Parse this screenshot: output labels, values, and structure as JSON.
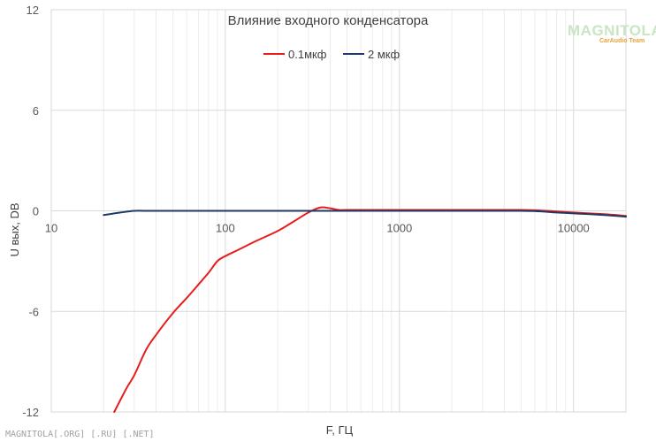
{
  "chart_data": {
    "type": "line",
    "title": "Влияние входного конденсатора",
    "xlabel": "F, ГЦ",
    "ylabel": "U вых, DB",
    "x_scale": "log",
    "xlim": [
      10,
      20000
    ],
    "ylim": [
      -12,
      12
    ],
    "x_ticks": [
      10,
      100,
      1000,
      10000
    ],
    "x_tick_labels": [
      "10",
      "100",
      "1000",
      "10000"
    ],
    "y_ticks": [
      -12,
      -6,
      0,
      6,
      12
    ],
    "y_tick_labels": [
      "-12",
      "-6",
      "0",
      "6",
      "12"
    ],
    "grid": true,
    "legend_position": "top-center",
    "series": [
      {
        "name": "0.1мкф",
        "color": "#e81c1c",
        "points": [
          [
            23,
            -12.0
          ],
          [
            27,
            -10.6
          ],
          [
            30,
            -9.8
          ],
          [
            35,
            -8.3
          ],
          [
            40,
            -7.4
          ],
          [
            50,
            -6.1
          ],
          [
            60,
            -5.2
          ],
          [
            70,
            -4.4
          ],
          [
            80,
            -3.7
          ],
          [
            90,
            -3.0
          ],
          [
            100,
            -2.7
          ],
          [
            120,
            -2.3
          ],
          [
            150,
            -1.8
          ],
          [
            200,
            -1.2
          ],
          [
            250,
            -0.6
          ],
          [
            300,
            -0.1
          ],
          [
            350,
            0.2
          ],
          [
            400,
            0.15
          ],
          [
            450,
            0.05
          ],
          [
            500,
            0.05
          ],
          [
            1000,
            0.05
          ],
          [
            2000,
            0.05
          ],
          [
            5000,
            0.05
          ],
          [
            7000,
            0.0
          ],
          [
            10000,
            -0.1
          ],
          [
            15000,
            -0.2
          ],
          [
            20000,
            -0.3
          ]
        ]
      },
      {
        "name": "2 мкф",
        "color": "#1f3864",
        "points": [
          [
            20,
            -0.25
          ],
          [
            25,
            -0.1
          ],
          [
            30,
            0.0
          ],
          [
            35,
            0.0
          ],
          [
            50,
            0.0
          ],
          [
            100,
            0.0
          ],
          [
            1000,
            0.0
          ],
          [
            5000,
            0.0
          ],
          [
            8000,
            -0.1
          ],
          [
            10000,
            -0.15
          ],
          [
            15000,
            -0.25
          ],
          [
            20000,
            -0.35
          ]
        ]
      }
    ]
  },
  "watermark": {
    "logo": "MAGNITOLA",
    "sub": "CarAudio Team",
    "bottom": "MAGNITOLA[.ORG] [.RU] [.NET]"
  }
}
